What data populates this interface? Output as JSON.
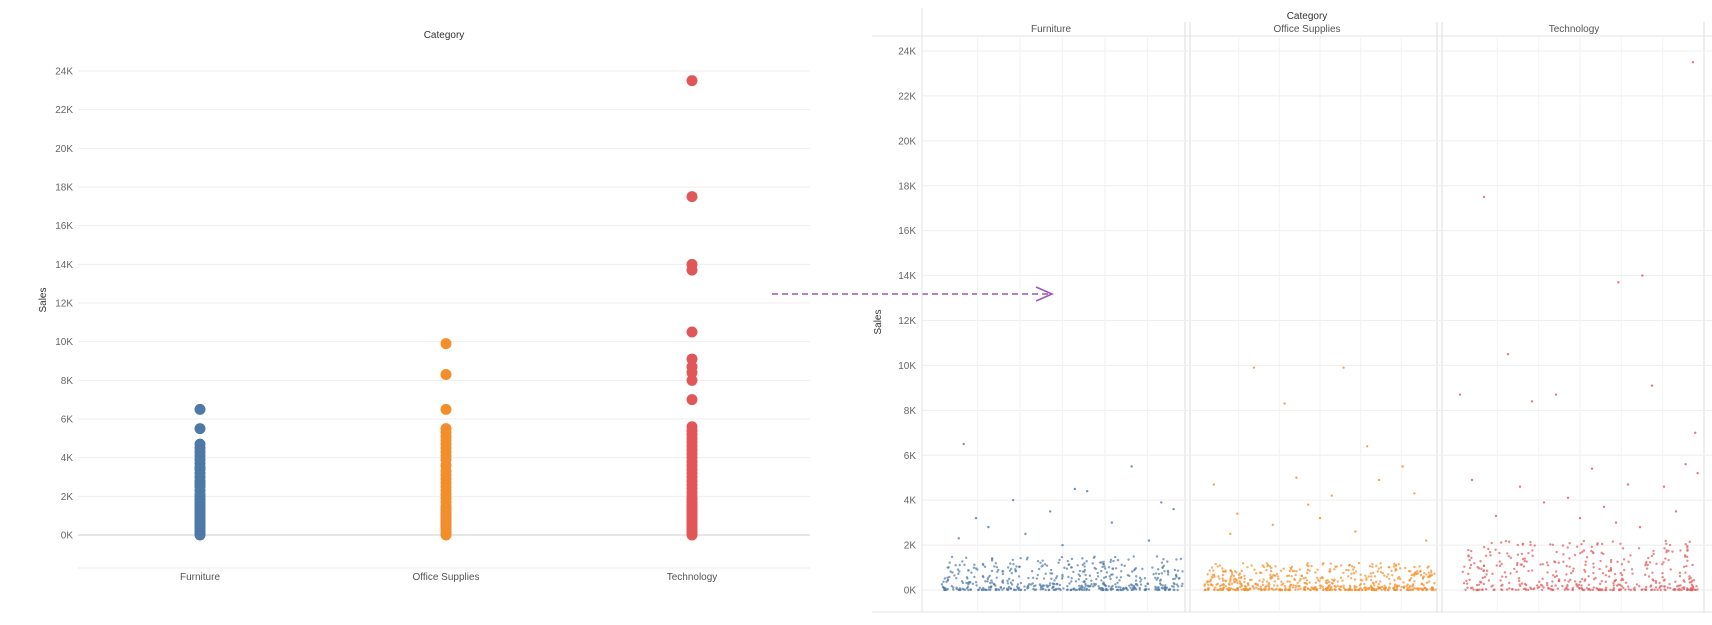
{
  "colors": {
    "Furniture": "#4e79a7",
    "Office Supplies": "#f28e2b",
    "Technology": "#e15759",
    "arrow": "#9b59b6",
    "grid": "#eeeeee",
    "axis": "#bbbbbb"
  },
  "connector": {
    "type": "dashed-arrow",
    "direction": "left-to-right"
  },
  "chart_data": [
    {
      "type": "scatter",
      "title": "Category",
      "xlabel": "",
      "ylabel": "Sales",
      "categories": [
        "Furniture",
        "Office Supplies",
        "Technology"
      ],
      "y_ticks": [
        "0K",
        "2K",
        "4K",
        "6K",
        "8K",
        "10K",
        "12K",
        "14K",
        "16K",
        "18K",
        "20K",
        "22K",
        "24K"
      ],
      "ylim": [
        -1500,
        24500
      ],
      "grid": true,
      "series": [
        {
          "name": "Furniture",
          "values": [
            0,
            100,
            200,
            300,
            400,
            500,
            600,
            700,
            800,
            900,
            1000,
            1100,
            1200,
            1300,
            1400,
            1500,
            1600,
            1700,
            1800,
            1900,
            2000,
            2100,
            2300,
            2500,
            2600,
            2700,
            2800,
            3000,
            3200,
            3400,
            3500,
            3700,
            3900,
            4100,
            4300,
            4500,
            4700,
            5500,
            6500
          ]
        },
        {
          "name": "Office Supplies",
          "values": [
            0,
            100,
            200,
            300,
            400,
            500,
            600,
            700,
            800,
            900,
            1000,
            1100,
            1200,
            1300,
            1400,
            1500,
            1700,
            1900,
            2100,
            2300,
            2500,
            2700,
            2900,
            3100,
            3300,
            3600,
            3900,
            4100,
            4300,
            4500,
            4700,
            4900,
            5100,
            5300,
            5500,
            6500,
            8300,
            9900
          ]
        },
        {
          "name": "Technology",
          "values": [
            0,
            100,
            200,
            300,
            400,
            500,
            600,
            700,
            800,
            900,
            1000,
            1100,
            1200,
            1300,
            1400,
            1500,
            1600,
            1700,
            1800,
            1900,
            2000,
            2200,
            2400,
            2600,
            2800,
            3000,
            3200,
            3400,
            3600,
            3800,
            4000,
            4200,
            4400,
            4600,
            4800,
            5000,
            5200,
            5400,
            5600,
            7000,
            8000,
            8400,
            8700,
            9100,
            10500,
            13700,
            14000,
            17500,
            23500
          ]
        }
      ]
    },
    {
      "type": "scatter",
      "title": "Category",
      "xlabel": "",
      "ylabel": "Sales",
      "panels": [
        "Furniture",
        "Office Supplies",
        "Technology"
      ],
      "y_ticks": [
        "0K",
        "2K",
        "4K",
        "6K",
        "8K",
        "10K",
        "12K",
        "14K",
        "16K",
        "18K",
        "20K",
        "22K",
        "24K"
      ],
      "ylim": [
        -600,
        25000
      ],
      "grid": true,
      "series": [
        {
          "name": "Furniture",
          "points": [
            [
              0.1,
              6500
            ],
            [
              0.55,
              4500
            ],
            [
              0.78,
              5500
            ],
            [
              0.15,
              3200
            ],
            [
              0.6,
              4400
            ],
            [
              0.9,
              3900
            ],
            [
              0.3,
              4000
            ],
            [
              0.45,
              3500
            ],
            [
              0.2,
              2800
            ],
            [
              0.7,
              3000
            ],
            [
              0.08,
              2300
            ],
            [
              0.35,
              2500
            ],
            [
              0.5,
              2000
            ],
            [
              0.85,
              2200
            ],
            [
              0.95,
              3600
            ]
          ],
          "cluster": {
            "count": 520,
            "x_range": [
              0.01,
              0.99
            ],
            "y_range": [
              0,
              1500
            ]
          }
        },
        {
          "name": "Office Supplies",
          "points": [
            [
              0.22,
              9900
            ],
            [
              0.6,
              9900
            ],
            [
              0.35,
              8300
            ],
            [
              0.7,
              6400
            ],
            [
              0.85,
              5500
            ],
            [
              0.05,
              4700
            ],
            [
              0.4,
              5000
            ],
            [
              0.55,
              4200
            ],
            [
              0.75,
              4900
            ],
            [
              0.9,
              4300
            ],
            [
              0.15,
              3400
            ],
            [
              0.5,
              3200
            ],
            [
              0.3,
              2900
            ],
            [
              0.65,
              2600
            ],
            [
              0.95,
              2200
            ],
            [
              0.12,
              2500
            ],
            [
              0.45,
              3800
            ]
          ],
          "cluster": {
            "count": 600,
            "x_range": [
              0.01,
              0.99
            ],
            "y_range": [
              0,
              1200
            ]
          }
        },
        {
          "name": "Technology",
          "points": [
            [
              0.1,
              17500
            ],
            [
              0.97,
              23500
            ],
            [
              0.66,
              13700
            ],
            [
              0.76,
              14000
            ],
            [
              0.2,
              10500
            ],
            [
              0.0,
              8700
            ],
            [
              0.8,
              9100
            ],
            [
              0.3,
              8400
            ],
            [
              0.4,
              8700
            ],
            [
              0.98,
              7000
            ],
            [
              0.94,
              5600
            ],
            [
              0.05,
              4900
            ],
            [
              0.25,
              4600
            ],
            [
              0.55,
              5400
            ],
            [
              0.7,
              4700
            ],
            [
              0.85,
              4600
            ],
            [
              0.35,
              3900
            ],
            [
              0.45,
              4100
            ],
            [
              0.6,
              3700
            ],
            [
              0.9,
              3500
            ],
            [
              0.15,
              3300
            ],
            [
              0.5,
              3200
            ],
            [
              0.65,
              3000
            ],
            [
              0.75,
              2800
            ],
            [
              0.99,
              5200
            ]
          ],
          "cluster": {
            "count": 430,
            "x_range": [
              0.01,
              0.99
            ],
            "y_range": [
              0,
              2200
            ]
          }
        }
      ]
    }
  ]
}
